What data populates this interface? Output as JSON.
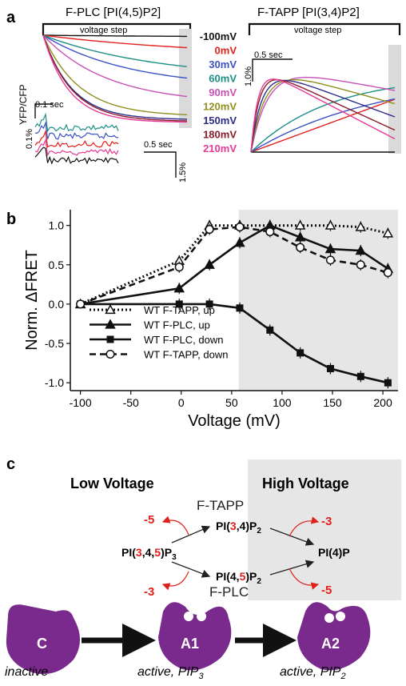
{
  "panel_a": {
    "letter": "a",
    "left_title": "F-PLC [PI(4,5)P2]",
    "right_title": "F-TAPP [PI(3,4)P2]",
    "step_label": "voltage step",
    "ylabel": "YFP/CFP",
    "scale_left_y": "0.1%",
    "scale_left_x": "0.1 sec",
    "scale_mid_x": "0.5 sec",
    "scale_mid_y": "1.5%",
    "scale_right_y": "1.0%",
    "scale_right_x": "0.5 sec",
    "legend": [
      {
        "label": "-100mV",
        "color": "#111111"
      },
      {
        "label": "0mV",
        "color": "#e0201b"
      },
      {
        "label": "30mV",
        "color": "#3a52c4"
      },
      {
        "label": "60mV",
        "color": "#1c8e86"
      },
      {
        "label": "90mV",
        "color": "#c850b8"
      },
      {
        "label": "120mV",
        "color": "#8f8f1e"
      },
      {
        "label": "150mV",
        "color": "#2c2c8c"
      },
      {
        "label": "180mV",
        "color": "#8a1c2a"
      },
      {
        "label": "210mV",
        "color": "#e63a96"
      }
    ]
  },
  "panel_b": {
    "letter": "b",
    "chart_data": {
      "type": "line",
      "xlabel": "Voltage (mV)",
      "ylabel": "Norm. ΔFRET",
      "xlim": [
        -110,
        215
      ],
      "ylim": [
        -1.1,
        1.2
      ],
      "xticks": [
        -100,
        -50,
        0,
        50,
        100,
        150,
        200
      ],
      "yticks": [
        -1.0,
        -0.5,
        0.0,
        0.5,
        1.0
      ],
      "shaded_from_x": 57,
      "grid": false,
      "legend_position": "lower-left",
      "series": [
        {
          "name": "WT F-TAPP, up",
          "marker": "triangle-open",
          "dash": "dotted",
          "x": [
            -100,
            -2,
            28,
            58,
            88,
            118,
            148,
            178,
            205
          ],
          "y": [
            0.0,
            0.55,
            1.0,
            1.0,
            1.0,
            1.0,
            1.0,
            0.98,
            0.9
          ]
        },
        {
          "name": "WT F-PLC, up",
          "marker": "triangle-filled",
          "dash": "solid",
          "x": [
            -100,
            -2,
            28,
            58,
            88,
            118,
            148,
            178,
            205
          ],
          "y": [
            0.0,
            0.2,
            0.5,
            0.78,
            1.0,
            0.85,
            0.7,
            0.68,
            0.45
          ]
        },
        {
          "name": "WT F-PLC, down",
          "marker": "square-filled",
          "dash": "solid",
          "x": [
            -100,
            -2,
            28,
            58,
            88,
            118,
            148,
            178,
            205
          ],
          "y": [
            0.0,
            0.0,
            0.0,
            -0.05,
            -0.33,
            -0.62,
            -0.82,
            -0.92,
            -1.0
          ]
        },
        {
          "name": "WT F-TAPP, down",
          "marker": "circle-open",
          "dash": "dashed",
          "x": [
            -100,
            -2,
            28,
            58,
            88,
            118,
            148,
            178,
            205
          ],
          "y": [
            0.0,
            0.47,
            0.95,
            0.98,
            0.92,
            0.72,
            0.56,
            0.5,
            0.4
          ]
        }
      ]
    }
  },
  "panel_c": {
    "letter": "c",
    "low_label": "Low Voltage",
    "high_label": "High Voltage",
    "ftapp": "F-TAPP",
    "fplc": "F-PLC",
    "pip3": {
      "a": "PI(",
      "r1": "3",
      "b": ",4,",
      "r2": "5",
      "c": ")P",
      "sub": "3"
    },
    "pi34": {
      "a": "PI(",
      "r1": "3",
      "b": ",4)P",
      "sub": "2"
    },
    "pi45": {
      "a": "PI(4,",
      "r1": "5",
      "b": ")P",
      "sub": "2"
    },
    "pi4p": "PI(4)P",
    "rates": {
      "tl": "-5",
      "bl": "-3",
      "tr": "-3",
      "br": "-5"
    },
    "states": [
      {
        "letter": "C",
        "caption": "inactive"
      },
      {
        "letter": "A1",
        "caption": "active, PIP",
        "sub": "3"
      },
      {
        "letter": "A2",
        "caption": "active, PIP",
        "sub": "2"
      }
    ],
    "enzyme_color": "#7a2a8c",
    "red_color": "#e0201b"
  }
}
